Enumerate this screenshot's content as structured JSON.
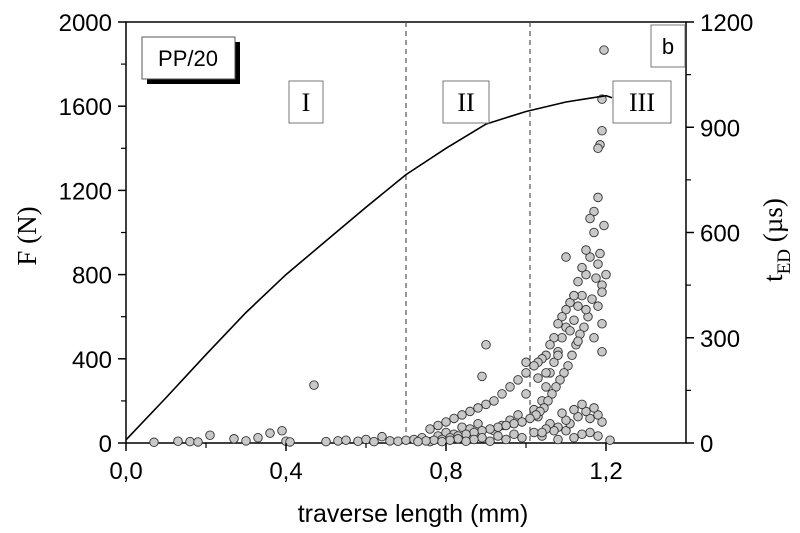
{
  "chart_data": {
    "type": "line+scatter",
    "xlabel": "traverse length  (mm)",
    "ylabel_left": "F (N)",
    "ylabel_right_main": "t",
    "ylabel_right_sub": "ED",
    "ylabel_right_unit": " (µs)",
    "xlim": [
      0.0,
      1.4
    ],
    "ylim_left": [
      0,
      2000
    ],
    "ylim_right": [
      0,
      1200
    ],
    "x_ticks": [
      0.0,
      0.4,
      0.8,
      1.2
    ],
    "x_tick_labels": [
      "0,0",
      "0,4",
      "0,8",
      "1,2"
    ],
    "y_left_ticks": [
      0,
      400,
      800,
      1200,
      1600,
      2000
    ],
    "y_left_tick_labels": [
      "0",
      "400",
      "800",
      "1200",
      "1600",
      "2000"
    ],
    "y_right_ticks": [
      0,
      300,
      600,
      900,
      1200
    ],
    "y_right_tick_labels": [
      "0",
      "300",
      "600",
      "900",
      "1200"
    ],
    "sample_label": "PP/20",
    "panel_label": "b",
    "regions": [
      {
        "label": "I",
        "x": 0.45
      },
      {
        "label": "II",
        "x": 0.85
      },
      {
        "label": "III",
        "x": 1.29
      }
    ],
    "region_boundaries": [
      0.7,
      1.01
    ],
    "grid": false,
    "force_curve": {
      "x": [
        0.0,
        0.1,
        0.2,
        0.3,
        0.4,
        0.5,
        0.6,
        0.7,
        0.8,
        0.9,
        1.0,
        1.1,
        1.15,
        1.2,
        1.215
      ],
      "y": [
        15,
        215,
        420,
        620,
        800,
        960,
        1120,
        1275,
        1400,
        1515,
        1575,
        1620,
        1635,
        1650,
        1640
      ]
    },
    "event_duration_points": {
      "x": [
        0.07,
        0.13,
        0.16,
        0.18,
        0.21,
        0.27,
        0.3,
        0.33,
        0.36,
        0.39,
        0.4,
        0.41,
        0.47,
        0.5,
        0.53,
        0.55,
        0.58,
        0.6,
        0.62,
        0.64,
        0.66,
        0.68,
        0.7,
        0.72,
        0.74,
        0.76,
        0.78,
        0.8,
        0.82,
        0.84,
        0.86,
        0.88,
        0.89,
        0.9,
        0.92,
        0.94,
        0.96,
        0.98,
        1.0,
        1.02,
        1.03,
        1.04,
        1.05,
        1.06,
        1.07,
        1.08,
        1.09,
        1.1,
        1.11,
        1.12,
        1.13,
        1.14,
        1.15,
        1.16,
        1.17,
        1.18,
        1.185,
        1.19,
        1.195,
        1.19,
        1.18,
        1.17,
        1.16,
        1.15,
        1.14,
        1.13,
        1.12,
        1.11,
        1.1,
        1.09,
        1.08,
        1.07,
        1.06,
        1.05,
        1.04,
        1.03,
        1.02,
        1.0,
        0.98,
        0.96,
        0.94,
        0.92,
        0.9,
        0.88,
        0.86,
        0.84,
        0.82,
        0.8,
        0.78,
        0.76,
        1.195,
        1.185,
        1.18,
        1.19,
        1.175,
        1.165,
        1.155,
        1.145,
        1.135,
        1.125,
        1.115,
        1.105,
        1.095,
        1.085,
        1.075,
        1.065,
        1.055,
        1.045,
        1.035,
        1.025,
        1.01,
        0.99,
        0.97,
        0.95,
        0.93,
        0.91,
        0.89,
        0.87,
        0.85,
        0.83,
        0.81,
        0.79,
        0.77,
        0.75,
        0.73,
        1.2,
        1.19,
        1.18,
        1.19,
        1.17,
        1.19,
        1.1,
        1.12,
        1.08,
        1.15,
        1.05,
        1.13,
        1.0,
        1.03,
        1.21,
        1.18,
        1.16,
        1.14,
        1.12,
        1.1,
        1.08,
        1.06,
        1.04,
        1.02,
        0.99,
        0.97,
        0.95,
        0.93,
        0.91,
        0.89,
        0.87,
        0.85,
        0.83,
        0.81,
        0.79,
        1.19,
        1.18,
        1.17,
        1.16,
        1.15,
        1.14,
        1.13,
        1.12,
        1.11,
        1.1,
        1.09,
        1.08,
        1.07,
        1.06,
        1.05,
        1.04
      ],
      "y": [
        2,
        5,
        4,
        3,
        22,
        12,
        6,
        15,
        28,
        35,
        5,
        3,
        165,
        4,
        6,
        8,
        5,
        10,
        4,
        18,
        6,
        5,
        8,
        10,
        15,
        4,
        20,
        30,
        25,
        45,
        40,
        55,
        190,
        280,
        35,
        50,
        65,
        80,
        140,
        95,
        75,
        120,
        160,
        200,
        230,
        260,
        300,
        330,
        320,
        350,
        390,
        420,
        480,
        530,
        600,
        700,
        850,
        980,
        1120,
        890,
        840,
        660,
        640,
        550,
        500,
        460,
        420,
        400,
        380,
        360,
        340,
        300,
        280,
        250,
        240,
        230,
        220,
        200,
        180,
        160,
        140,
        120,
        110,
        100,
        90,
        80,
        70,
        60,
        50,
        40,
        620,
        540,
        510,
        450,
        470,
        410,
        360,
        330,
        310,
        280,
        250,
        220,
        200,
        180,
        160,
        140,
        120,
        100,
        90,
        80,
        70,
        60,
        55,
        50,
        45,
        40,
        35,
        30,
        25,
        20,
        15,
        10,
        8,
        6,
        4,
        480,
        430,
        390,
        340,
        300,
        260,
        530,
        420,
        250,
        380,
        200,
        290,
        230,
        185,
        8,
        20,
        30,
        25,
        15,
        35,
        10,
        45,
        20,
        30,
        15,
        25,
        10,
        20,
        5,
        15,
        10,
        5,
        12,
        8,
        4,
        60,
        80,
        100,
        70,
        90,
        110,
        75,
        95,
        55,
        65,
        85,
        45,
        35,
        55,
        40,
        30
      ]
    }
  }
}
